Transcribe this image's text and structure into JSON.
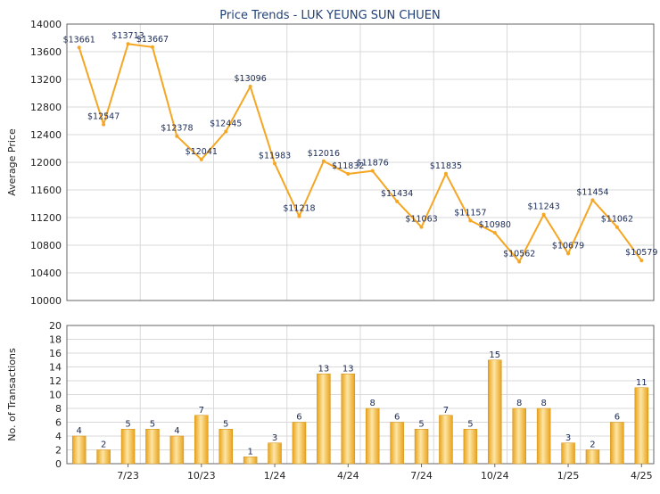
{
  "colors": {
    "line": "#f5a623",
    "bar_light": "#fde6a5",
    "bar_dark": "#e9a21a",
    "grid": "#d9d9d9",
    "axis": "#666666",
    "title": "#1f3f7a",
    "label": "#1a2a55"
  },
  "chart_data": [
    {
      "type": "line",
      "title": "Price Trends - LUK YEUNG SUN CHUEN",
      "ylabel": "Average Price",
      "ylim": [
        10000,
        14000
      ],
      "yticks": [
        10000,
        10400,
        10800,
        11200,
        11600,
        12000,
        12400,
        12800,
        13200,
        13600,
        14000
      ],
      "grid": true,
      "values": [
        13661,
        12547,
        13713,
        13667,
        12378,
        12041,
        12445,
        13096,
        11983,
        11218,
        12016,
        11832,
        11876,
        11434,
        11063,
        11835,
        11157,
        10980,
        10562,
        11243,
        10679,
        11454,
        11062,
        10579
      ],
      "labels": [
        "$13661",
        "$12547",
        "$13713",
        "$13667",
        "$12378",
        "$12041",
        "$12445",
        "$13096",
        "$11983",
        "$11218",
        "$12016",
        "$11832",
        "$11876",
        "$11434",
        "$11063",
        "$11835",
        "$11157",
        "$10980",
        "$10562",
        "$11243",
        "$10679",
        "$11454",
        "$11062",
        "$10579"
      ]
    },
    {
      "type": "bar",
      "ylabel": "No. of Transactions",
      "ylim": [
        0,
        20
      ],
      "yticks": [
        0,
        2,
        4,
        6,
        8,
        10,
        12,
        14,
        16,
        18,
        20
      ],
      "grid": true,
      "values": [
        4,
        2,
        5,
        5,
        4,
        7,
        5,
        1,
        3,
        6,
        13,
        13,
        8,
        6,
        5,
        7,
        5,
        15,
        8,
        8,
        3,
        2,
        6,
        11
      ],
      "labels": [
        "4",
        "2",
        "5",
        "5",
        "4",
        "7",
        "5",
        "1",
        "3",
        "6",
        "13",
        "13",
        "8",
        "6",
        "5",
        "7",
        "5",
        "15",
        "8",
        "8",
        "3",
        "2",
        "6",
        "11"
      ],
      "xtick_labels": [
        {
          "index": 2.5,
          "label": "7/23"
        },
        {
          "index": 5.5,
          "label": "10/23"
        },
        {
          "index": 8.5,
          "label": "1/24"
        },
        {
          "index": 11.5,
          "label": "4/24"
        },
        {
          "index": 14.5,
          "label": "7/24"
        },
        {
          "index": 17.5,
          "label": "10/24"
        },
        {
          "index": 20.5,
          "label": "1/25"
        },
        {
          "index": 23.5,
          "label": "4/25"
        }
      ]
    }
  ]
}
